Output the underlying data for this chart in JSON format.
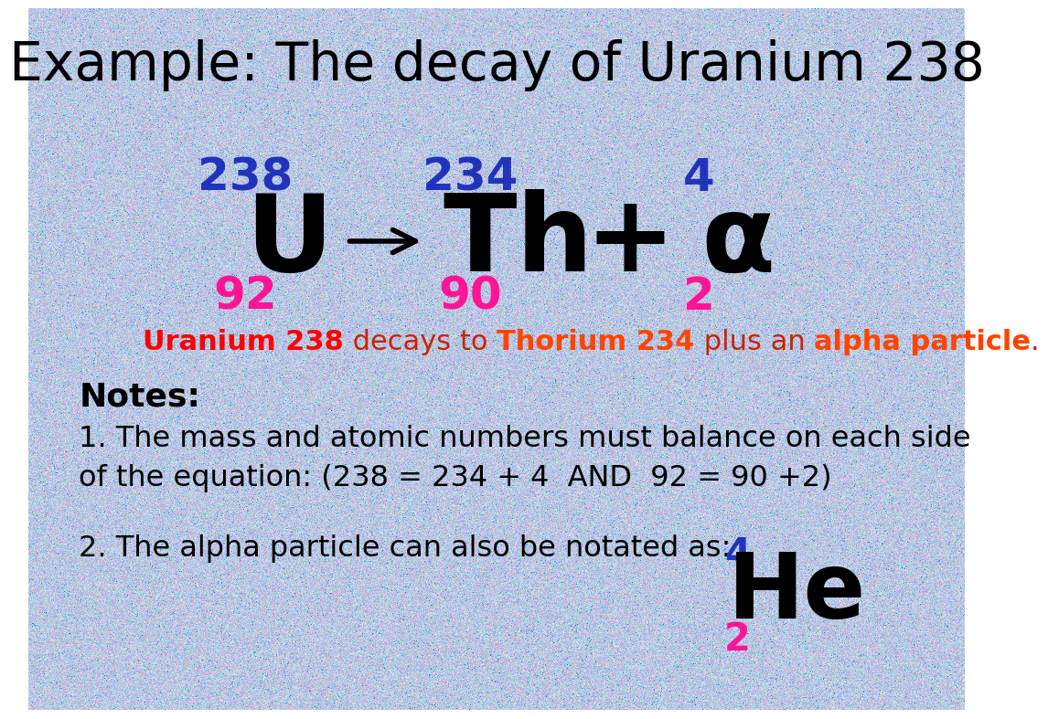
{
  "title": "Example: The decay of Uranium 238",
  "title_color": "#000000",
  "title_fontsize": 42,
  "bg_color_r": 175,
  "bg_color_g": 195,
  "bg_color_b": 225,
  "equation": {
    "U_mass": "238",
    "U_atomic": "92",
    "Th_mass": "234",
    "Th_atomic": "90",
    "alpha_mass": "4",
    "alpha_atomic": "2",
    "mass_color": "#2233bb",
    "atomic_color": "#ff1493",
    "symbol_color": "#000000",
    "element_fontsize": 85,
    "superscript_fontsize": 36,
    "subscript_fontsize": 36
  },
  "desc_fontsize": 22,
  "desc_parts": [
    {
      "text": "Uranium 238",
      "color": "#ff0000",
      "bold": true
    },
    {
      "text": " decays to ",
      "color": "#cc2200",
      "bold": false
    },
    {
      "text": "Thorium 234",
      "color": "#ff4400",
      "bold": true
    },
    {
      "text": " plus an ",
      "color": "#cc2200",
      "bold": false
    },
    {
      "text": "alpha particle",
      "color": "#ff4400",
      "bold": true
    },
    {
      "text": ".",
      "color": "#cc2200",
      "bold": false
    }
  ],
  "notes_header": "Notes:",
  "notes_header_fontsize": 26,
  "notes_item_fontsize": 23,
  "note1": "1. The mass and atomic numbers must balance on each side\nof the equation: (238 = 234 + 4  AND  92 = 90 +2)",
  "note2": "2. The alpha particle can also be notated as:",
  "He_mass": "4",
  "He_atomic": "2",
  "He_symbol": "He",
  "He_mass_color": "#2233bb",
  "He_atomic_color": "#ff1493",
  "He_symbol_color": "#000000",
  "He_symbol_fontsize": 72,
  "He_number_fontsize": 30
}
